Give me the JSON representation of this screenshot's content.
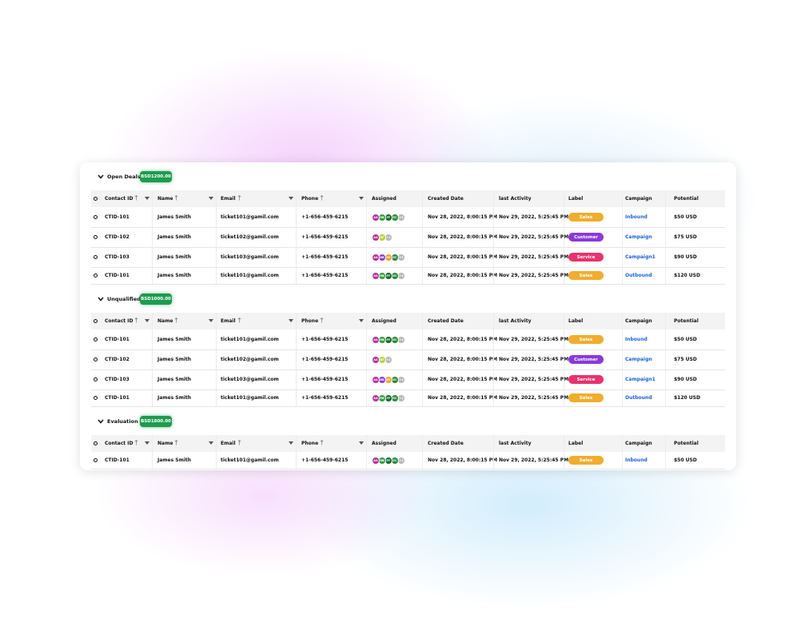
{
  "columns": [
    "Contact ID",
    "Name",
    "Email",
    "Phone",
    "Assigned",
    "Created Date",
    "last Activity",
    "Label",
    "Campaign",
    "Potential"
  ],
  "label_colors": {
    "Sales": "#f0ad2e",
    "Customer": "#8a3ad8",
    "Service": "#e8336e"
  },
  "avatar_colors": {
    "AA": "#b5309c",
    "RB": "#2f9e3a",
    "FF": "#176b2a",
    "EC": "#2c8a3a",
    "+1": "#b8b8b8",
    "RF": "#b6d33a",
    "BB": "#8a3ad8",
    "EK": "#f0a02e"
  },
  "groups": [
    {
      "title": "Open Deals",
      "badge": "BSD1200.00",
      "rows": [
        {
          "contact_id": "CTID-101",
          "name": "James Smith",
          "email": "ticket101@gamil.com",
          "phone": "+1-656-459-6215",
          "assigned": [
            "AA",
            "RB",
            "FF",
            "EC",
            "+1"
          ],
          "created": "Nov 28, 2022, 8:00:15 PM",
          "activity": "Nov 29, 2022, 5:25:45 PM",
          "label": "Sales",
          "campaign": "Inbound",
          "potential": "$50 USD"
        },
        {
          "contact_id": "CTID-102",
          "name": "James Smith",
          "email": "ticket102@gamil.com",
          "phone": "+1-656-459-6215",
          "assigned": [
            "AA",
            "RF",
            "+1"
          ],
          "created": "Nov 28, 2022, 8:00:15 PM",
          "activity": "Nov 29, 2022, 5:25:45 PM",
          "label": "Customer",
          "campaign": "Campaign",
          "potential": "$75 USD"
        },
        {
          "contact_id": "CTID-103",
          "name": "James Smith",
          "email": "ticket103@gamil.com",
          "phone": "+1-656-459-6215",
          "assigned": [
            "AA",
            "BB",
            "EK",
            "EC",
            "+1"
          ],
          "created": "Nov 28, 2022, 8:00:15 PM",
          "activity": "Nov 29, 2022, 5:25:45 PM",
          "label": "Service",
          "campaign": "Campaign1",
          "potential": "$90 USD"
        },
        {
          "contact_id": "CTID-101",
          "name": "James Smith",
          "email": "ticket101@gamil.com",
          "phone": "+1-656-459-6215",
          "assigned": [
            "AA",
            "RB",
            "FF",
            "EC",
            "+1"
          ],
          "created": "Nov 28, 2022, 8:00:15 PM",
          "activity": "Nov 29, 2022, 5:25:45 PM",
          "label": "Sales",
          "campaign": "Outbound",
          "potential": "$120 USD"
        }
      ]
    },
    {
      "title": "Unqualified",
      "badge": "BSD1000.00",
      "rows": [
        {
          "contact_id": "CTID-101",
          "name": "James Smith",
          "email": "ticket101@gamil.com",
          "phone": "+1-656-459-6215",
          "assigned": [
            "AA",
            "RB",
            "FF",
            "EC",
            "+1"
          ],
          "created": "Nov 28, 2022, 8:00:15 PM",
          "activity": "Nov 29, 2022, 5:25:45 PM",
          "label": "Sales",
          "campaign": "Inbound",
          "potential": "$50 USD"
        },
        {
          "contact_id": "CTID-102",
          "name": "James Smith",
          "email": "ticket102@gamil.com",
          "phone": "+1-656-459-6215",
          "assigned": [
            "AA",
            "RF",
            "+1"
          ],
          "created": "Nov 28, 2022, 8:00:15 PM",
          "activity": "Nov 29, 2022, 5:25:45 PM",
          "label": "Customer",
          "campaign": "Campaign",
          "potential": "$75 USD"
        },
        {
          "contact_id": "CTID-103",
          "name": "James Smith",
          "email": "ticket103@gamil.com",
          "phone": "+1-656-459-6215",
          "assigned": [
            "AA",
            "BB",
            "EK",
            "EC",
            "+1"
          ],
          "created": "Nov 28, 2022, 8:00:15 PM",
          "activity": "Nov 29, 2022, 5:25:45 PM",
          "label": "Service",
          "campaign": "Campaign1",
          "potential": "$90 USD"
        },
        {
          "contact_id": "CTID-101",
          "name": "James Smith",
          "email": "ticket101@gamil.com",
          "phone": "+1-656-459-6215",
          "assigned": [
            "AA",
            "RB",
            "FF",
            "EC",
            "+1"
          ],
          "created": "Nov 28, 2022, 8:00:15 PM",
          "activity": "Nov 29, 2022, 5:25:45 PM",
          "label": "Sales",
          "campaign": "Outbound",
          "potential": "$120 USD"
        }
      ]
    },
    {
      "title": "Evaluation",
      "badge": "BSD1800.00",
      "rows": [
        {
          "contact_id": "CTID-101",
          "name": "James Smith",
          "email": "ticket101@gamil.com",
          "phone": "+1-656-459-6215",
          "assigned": [
            "AA",
            "RB",
            "FF",
            "EC",
            "+1"
          ],
          "created": "Nov 28, 2022, 8:00:15 PM",
          "activity": "Nov 29, 2022, 5:25:45 PM",
          "label": "Sales",
          "campaign": "Inbound",
          "potential": "$50 USD"
        }
      ]
    }
  ]
}
